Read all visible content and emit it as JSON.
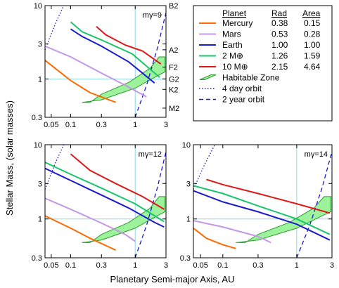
{
  "figure": {
    "xlabel": "Planetary Semi-major Axis, AU",
    "ylabel": "Stellar Mass, (solar masses)"
  },
  "colors": {
    "Mercury": "#ff6a00",
    "Mars": "#c497e6",
    "Earth": "#1a1acf",
    "2 M⊕": "#17c66b",
    "10 M⊕": "#e01717",
    "zone_fill": "#9cf39c",
    "zone_stroke": "#2e9a2e",
    "guide": "#8ed9e6"
  },
  "legend": {
    "headers": [
      "Planet",
      "Rad",
      "Area"
    ],
    "rows": [
      {
        "planet": "Mercury",
        "rad": "0.38",
        "area": "0.15"
      },
      {
        "planet": "Mars",
        "rad": "0.53",
        "area": "0.28"
      },
      {
        "planet": "Earth",
        "rad": "1.00",
        "area": "1.00"
      },
      {
        "planet": "2 M⊕",
        "rad": "1.26",
        "area": "1.59"
      },
      {
        "planet": "10 M⊕",
        "rad": "2.15",
        "area": "4.64"
      }
    ],
    "extra": [
      "Habitable Zone",
      "4 day orbit",
      "2 year orbit"
    ]
  },
  "chart_data": [
    {
      "type": "line",
      "label": "mγ=9",
      "xscale": "log",
      "yscale": "log",
      "xlim": [
        0.04,
        3.0
      ],
      "ylim": [
        0.3,
        10
      ],
      "xticks": [
        "0.05",
        "0.1",
        "0.3",
        "1",
        "3"
      ],
      "yticks": [
        "0.3",
        "1",
        "3",
        "10"
      ],
      "right_ticks": [
        {
          "label": "B2",
          "y": 10
        },
        {
          "label": "A2",
          "y": 2.5
        },
        {
          "label": "F2",
          "y": 1.45
        },
        {
          "label": "G2",
          "y": 1.0
        },
        {
          "label": "K2",
          "y": 0.72
        },
        {
          "label": "M2",
          "y": 0.4
        }
      ],
      "series": [
        {
          "name": "Mercury",
          "x": [
            0.04,
            0.1,
            0.2,
            0.5
          ],
          "y": [
            1.8,
            0.95,
            0.65,
            0.48
          ]
        },
        {
          "name": "Mars",
          "x": [
            0.04,
            0.1,
            0.3,
            0.7,
            1.5
          ],
          "y": [
            2.8,
            2.0,
            1.2,
            0.82,
            0.57
          ]
        },
        {
          "name": "Earth",
          "x": [
            0.1,
            0.15,
            0.3,
            0.8,
            2.0
          ],
          "y": [
            4.8,
            3.8,
            2.8,
            1.7,
            0.88
          ]
        },
        {
          "name": "2 M⊕",
          "x": [
            0.1,
            0.15,
            0.3,
            0.9,
            2.4
          ],
          "y": [
            6.0,
            4.4,
            3.4,
            2.2,
            1.05
          ]
        },
        {
          "name": "10 M⊕",
          "x": [
            0.25,
            0.35,
            0.7,
            1.3,
            2.5
          ],
          "y": [
            5.2,
            4.0,
            2.9,
            2.4,
            1.6
          ]
        }
      ],
      "habitable_zone": {
        "x": [
          0.15,
          0.3,
          1.0,
          2.2,
          2.9,
          2.9,
          2.35,
          1.7,
          0.8,
          0.3,
          0.2
        ],
        "y": [
          0.48,
          0.52,
          0.75,
          1.1,
          1.25,
          2.0,
          2.0,
          1.4,
          0.9,
          0.62,
          0.48
        ]
      },
      "four_day_orbit": {
        "x": [
          0.04,
          0.057,
          0.078
        ],
        "y": [
          2.5,
          5.5,
          10
        ]
      },
      "two_year_orbit": {
        "x": [
          1.0,
          1.5,
          2.2,
          3.0
        ],
        "y": [
          0.3,
          0.82,
          2.6,
          8.0
        ]
      },
      "guides": {
        "x": 1,
        "y": 1
      }
    },
    {
      "type": "line",
      "label": "mγ=12",
      "xscale": "log",
      "yscale": "log",
      "xlim": [
        0.04,
        3.0
      ],
      "ylim": [
        0.3,
        10
      ],
      "xticks": [
        "0.05",
        "0.1",
        "0.3",
        "1",
        "3"
      ],
      "yticks": [
        "0.3",
        "1",
        "3",
        "10"
      ],
      "series": [
        {
          "name": "Mercury",
          "x": [
            0.04,
            0.1,
            0.2,
            0.5
          ],
          "y": [
            1.1,
            0.75,
            0.55,
            0.38
          ]
        },
        {
          "name": "Mars",
          "x": [
            0.04,
            0.1,
            0.3,
            0.7,
            1.0
          ],
          "y": [
            1.9,
            1.35,
            0.88,
            0.62,
            0.5
          ]
        },
        {
          "name": "Earth",
          "x": [
            0.04,
            0.1,
            0.3,
            0.8,
            2.0,
            2.8
          ],
          "y": [
            4.8,
            3.3,
            2.1,
            1.4,
            0.9,
            0.78
          ]
        },
        {
          "name": "2 M⊕",
          "x": [
            0.04,
            0.1,
            0.3,
            1.0,
            2.8
          ],
          "y": [
            5.8,
            4.0,
            2.6,
            1.6,
            0.92
          ]
        },
        {
          "name": "10 M⊕",
          "x": [
            0.1,
            0.2,
            0.5,
            1.3,
            2.8
          ],
          "y": [
            7.5,
            4.5,
            3.0,
            2.0,
            1.35
          ]
        }
      ],
      "habitable_zone": {
        "x": [
          0.15,
          0.3,
          1.0,
          2.2,
          2.9,
          2.9,
          2.35,
          1.7,
          0.8,
          0.3,
          0.2
        ],
        "y": [
          0.48,
          0.52,
          0.75,
          1.1,
          1.25,
          2.0,
          2.0,
          1.4,
          0.9,
          0.62,
          0.48
        ]
      },
      "four_day_orbit": {
        "x": [
          0.04,
          0.057,
          0.078
        ],
        "y": [
          2.5,
          5.5,
          10
        ]
      },
      "two_year_orbit": {
        "x": [
          1.0,
          1.5,
          2.2,
          3.0
        ],
        "y": [
          0.3,
          0.82,
          2.6,
          8.0
        ]
      },
      "guides": {
        "x": 1,
        "y": 1
      }
    },
    {
      "type": "line",
      "label": "mγ=14",
      "xscale": "log",
      "yscale": "log",
      "xlim": [
        0.04,
        3.0
      ],
      "ylim": [
        0.3,
        10
      ],
      "xticks": [
        "0.05",
        "0.1",
        "0.3",
        "1",
        "3"
      ],
      "yticks": [
        "0.3",
        "1",
        "3",
        "10"
      ],
      "series": [
        {
          "name": "Mercury",
          "x": [
            0.04,
            0.06,
            0.1,
            0.15
          ],
          "y": [
            0.75,
            0.55,
            0.45,
            0.4
          ]
        },
        {
          "name": "Mars",
          "x": [
            0.04,
            0.1,
            0.3,
            0.45
          ],
          "y": [
            0.95,
            0.78,
            0.58,
            0.48
          ]
        },
        {
          "name": "Earth",
          "x": [
            0.04,
            0.1,
            0.3,
            1.0,
            2.8
          ],
          "y": [
            2.4,
            1.7,
            1.25,
            0.85,
            0.52
          ]
        },
        {
          "name": "2 M⊕",
          "x": [
            0.04,
            0.1,
            0.3,
            1.0,
            2.8
          ],
          "y": [
            2.8,
            2.2,
            1.5,
            1.0,
            0.62
          ]
        },
        {
          "name": "10 M⊕",
          "x": [
            0.06,
            0.1,
            0.3,
            1.0,
            2.8
          ],
          "y": [
            3.4,
            2.9,
            2.2,
            1.6,
            1.2
          ]
        }
      ],
      "habitable_zone": {
        "x": [
          0.15,
          0.3,
          1.0,
          2.2,
          2.9,
          2.9,
          2.35,
          1.7,
          0.8,
          0.3,
          0.2
        ],
        "y": [
          0.48,
          0.52,
          0.75,
          1.1,
          1.25,
          2.0,
          2.0,
          1.4,
          0.9,
          0.62,
          0.48
        ]
      },
      "four_day_orbit": {
        "x": [
          0.04,
          0.057,
          0.078
        ],
        "y": [
          2.5,
          5.5,
          10
        ]
      },
      "two_year_orbit": {
        "x": [
          1.0,
          1.5,
          2.2,
          3.0
        ],
        "y": [
          0.3,
          0.82,
          2.6,
          8.0
        ]
      },
      "guides": {
        "x": 1,
        "y": 1
      }
    }
  ]
}
